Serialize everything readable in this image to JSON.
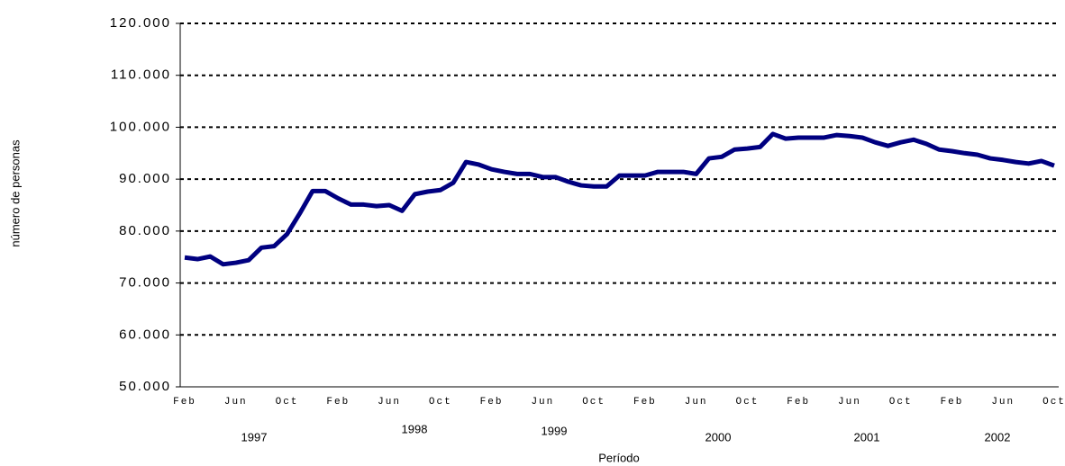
{
  "chart_data": {
    "type": "line",
    "x_axis_label": "Período",
    "y_axis_label": "número de personas",
    "categories": [
      "Feb",
      null,
      null,
      null,
      "Jun",
      null,
      null,
      null,
      "Oct",
      null,
      null,
      null,
      "Feb",
      null,
      null,
      null,
      "Jun",
      null,
      null,
      null,
      "Oct",
      null,
      null,
      null,
      "Feb",
      null,
      null,
      null,
      "Jun",
      null,
      null,
      null,
      "Oct",
      null,
      null,
      null,
      "Feb",
      null,
      null,
      null,
      "Jun",
      null,
      null,
      null,
      "Oct",
      null,
      null,
      null,
      "Feb",
      null,
      null,
      null,
      "Jun",
      null,
      null,
      null,
      "Oct",
      null,
      null,
      null,
      "Feb",
      null,
      null,
      null,
      "Jun",
      null,
      null,
      null,
      "Oct"
    ],
    "year_labels": [
      "1997",
      "1998",
      "1999",
      "2000",
      "2001",
      "2002"
    ],
    "series": [
      {
        "color": "#000080",
        "values": [
          74900,
          74600,
          75100,
          73600,
          73900,
          74400,
          76800,
          77100,
          79400,
          83400,
          87700,
          87700,
          86300,
          85100,
          85100,
          84800,
          85000,
          83900,
          87100,
          87600,
          87900,
          89300,
          93300,
          92800,
          91900,
          91400,
          91000,
          91000,
          90400,
          90400,
          89500,
          88800,
          88600,
          88600,
          90700,
          90700,
          90700,
          91400,
          91400,
          91400,
          91000,
          94000,
          94300,
          95700,
          95900,
          96200,
          98700,
          97800,
          98000,
          98000,
          98000,
          98500,
          98300,
          98000,
          97100,
          96400,
          97100,
          97600,
          96800,
          95700,
          95400,
          95000,
          94700,
          94000,
          93700,
          93300,
          93000,
          93500,
          92600
        ]
      }
    ],
    "ylim": [
      50000,
      120000
    ],
    "yticks": [
      {
        "value": 50000,
        "label": "50.000"
      },
      {
        "value": 60000,
        "label": "60.000"
      },
      {
        "value": 70000,
        "label": "70.000"
      },
      {
        "value": 80000,
        "label": "80.000"
      },
      {
        "value": 90000,
        "label": "90.000"
      },
      {
        "value": 100000,
        "label": "100.000"
      },
      {
        "value": 110000,
        "label": "110.000"
      },
      {
        "value": 120000,
        "label": "120.000"
      }
    ],
    "grid": true
  }
}
